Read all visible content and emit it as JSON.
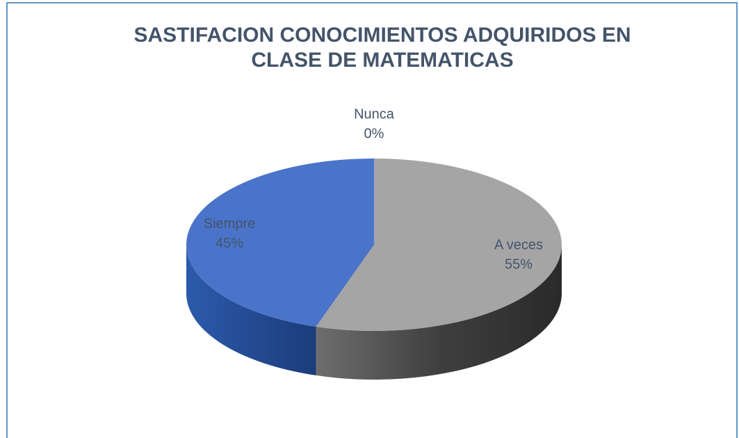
{
  "chart_data": {
    "type": "pie",
    "title": [
      "SASTIFACION CONOCIMIENTOS ADQUIRIDOS EN",
      "CLASE DE MATEMATICAS"
    ],
    "categories": [
      "Nunca",
      "A veces",
      "Siempre"
    ],
    "values": [
      0,
      55,
      45
    ],
    "value_labels": [
      "0%",
      "55%",
      "45%"
    ],
    "colors": [
      "#ed7d31",
      "#a5a5a5",
      "#4a74c9"
    ],
    "view": "3d"
  }
}
